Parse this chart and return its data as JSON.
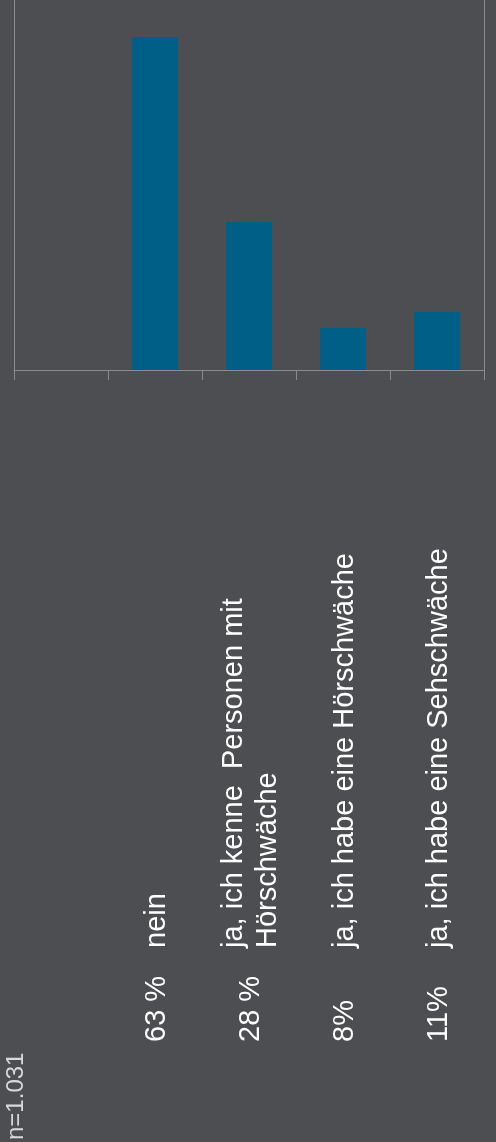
{
  "chart_data": {
    "type": "bar",
    "categories": [
      null,
      "nein",
      "ja, ich kenne  Personen mit\nHörschwäche",
      "ja, ich habe eine Hörschwäche",
      "ja, ich habe eine Sehschwäche"
    ],
    "values": [
      null,
      63,
      28,
      8,
      11
    ],
    "value_labels": [
      null,
      "63 %",
      "28 %",
      "8%",
      "11%"
    ],
    "color": "#005f87",
    "annotations": [
      "n=1.031"
    ]
  }
}
